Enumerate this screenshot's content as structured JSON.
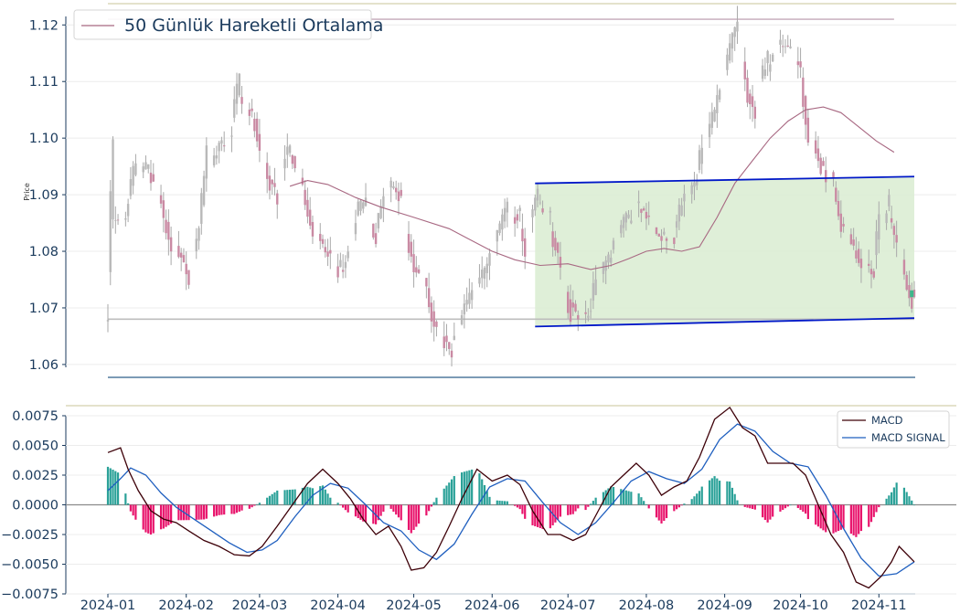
{
  "chart_data": [
    {
      "type": "candlestick",
      "ylabel": "Price",
      "ylim": [
        1.0595,
        1.1215
      ],
      "yticks": [
        "1.06",
        "1.07",
        "1.08",
        "1.09",
        "1.10",
        "1.11",
        "1.12"
      ],
      "ytick_values": [
        1.06,
        1.07,
        1.08,
        1.09,
        1.1,
        1.11,
        1.12
      ],
      "x_range": [
        "2024-01-01",
        "2024-11-15"
      ],
      "legend": {
        "label": "50 Günlük Hareketli Ortalama",
        "placement": "top-left"
      },
      "colors": {
        "moving_average": "#a86882",
        "channel": "#0018c8",
        "channel_fill": "#dcedd4",
        "wick": "#a9a9a9",
        "up_candle": "#3cb88a",
        "support_line": "#bdbdbd",
        "resistance_line": "#c4a8b8"
      },
      "horizontal_lines": {
        "support": 1.068,
        "resistance": 1.121
      },
      "support_line_range": [
        "2024-01-01",
        "2024-11-15"
      ],
      "resistance_line_range": [
        "2024-01-01",
        "2024-11-07"
      ],
      "channel": {
        "start": "2024-06-18",
        "end": "2024-11-15",
        "upper": [
          1.092,
          1.0932
        ],
        "lower": [
          1.0667,
          1.0682
        ]
      },
      "price_anchors": [
        [
          "2024-01-01",
          1.068
        ],
        [
          "2024-01-03",
          1.086
        ],
        [
          "2024-01-08",
          1.085
        ],
        [
          "2024-01-12",
          1.093
        ],
        [
          "2024-01-17",
          1.095
        ],
        [
          "2024-01-22",
          1.09
        ],
        [
          "2024-01-26",
          1.083
        ],
        [
          "2024-01-31",
          1.079
        ],
        [
          "2024-02-02",
          1.076
        ],
        [
          "2024-02-06",
          1.081
        ],
        [
          "2024-02-09",
          1.092
        ],
        [
          "2024-02-14",
          1.098
        ],
        [
          "2024-02-19",
          1.101
        ],
        [
          "2024-02-22",
          1.108
        ],
        [
          "2024-02-28",
          1.104
        ],
        [
          "2024-03-05",
          1.093
        ],
        [
          "2024-03-08",
          1.091
        ],
        [
          "2024-03-13",
          1.098
        ],
        [
          "2024-03-18",
          1.093
        ],
        [
          "2024-03-22",
          1.085
        ],
        [
          "2024-03-27",
          1.081
        ],
        [
          "2024-04-01",
          1.077
        ],
        [
          "2024-04-05",
          1.078
        ],
        [
          "2024-04-09",
          1.086
        ],
        [
          "2024-04-12",
          1.089
        ],
        [
          "2024-04-16",
          1.083
        ],
        [
          "2024-04-22",
          1.092
        ],
        [
          "2024-04-26",
          1.09
        ],
        [
          "2024-05-01",
          1.079
        ],
        [
          "2024-05-06",
          1.075
        ],
        [
          "2024-05-09",
          1.069
        ],
        [
          "2024-05-13",
          1.065
        ],
        [
          "2024-05-16",
          1.063
        ],
        [
          "2024-05-20",
          1.068
        ],
        [
          "2024-05-24",
          1.072
        ],
        [
          "2024-05-29",
          1.076
        ],
        [
          "2024-06-03",
          1.081
        ],
        [
          "2024-06-07",
          1.087
        ],
        [
          "2024-06-12",
          1.086
        ],
        [
          "2024-06-14",
          1.082
        ],
        [
          "2024-06-19",
          1.088
        ],
        [
          "2024-06-24",
          1.086
        ],
        [
          "2024-06-28",
          1.08
        ],
        [
          "2024-07-02",
          1.071
        ],
        [
          "2024-07-05",
          1.069
        ],
        [
          "2024-07-10",
          1.069
        ],
        [
          "2024-07-15",
          1.076
        ],
        [
          "2024-07-19",
          1.08
        ],
        [
          "2024-07-24",
          1.085
        ],
        [
          "2024-07-29",
          1.088
        ],
        [
          "2024-08-02",
          1.086
        ],
        [
          "2024-08-07",
          1.083
        ],
        [
          "2024-08-12",
          1.083
        ],
        [
          "2024-08-16",
          1.088
        ],
        [
          "2024-08-21",
          1.092
        ],
        [
          "2024-08-26",
          1.1
        ],
        [
          "2024-08-30",
          1.107
        ],
        [
          "2024-09-04",
          1.116
        ],
        [
          "2024-09-06",
          1.119
        ],
        [
          "2024-09-10",
          1.11
        ],
        [
          "2024-09-13",
          1.106
        ],
        [
          "2024-09-18",
          1.112
        ],
        [
          "2024-09-23",
          1.116
        ],
        [
          "2024-09-27",
          1.116
        ],
        [
          "2024-10-01",
          1.114
        ],
        [
          "2024-10-04",
          1.104
        ],
        [
          "2024-10-09",
          1.096
        ],
        [
          "2024-10-14",
          1.093
        ],
        [
          "2024-10-17",
          1.087
        ],
        [
          "2024-10-22",
          1.082
        ],
        [
          "2024-10-25",
          1.079
        ],
        [
          "2024-10-30",
          1.076
        ],
        [
          "2024-11-01",
          1.082
        ],
        [
          "2024-11-05",
          1.087
        ],
        [
          "2024-11-08",
          1.084
        ],
        [
          "2024-11-12",
          1.076
        ],
        [
          "2024-11-15",
          1.072
        ]
      ],
      "moving_average": [
        [
          "2024-03-13",
          1.0915
        ],
        [
          "2024-03-20",
          1.0925
        ],
        [
          "2024-03-28",
          1.0918
        ],
        [
          "2024-04-08",
          1.0895
        ],
        [
          "2024-04-18",
          1.0878
        ],
        [
          "2024-05-01",
          1.086
        ],
        [
          "2024-05-15",
          1.084
        ],
        [
          "2024-06-01",
          1.08
        ],
        [
          "2024-06-10",
          1.0785
        ],
        [
          "2024-06-20",
          1.0775
        ],
        [
          "2024-07-01",
          1.0778
        ],
        [
          "2024-07-10",
          1.0768
        ],
        [
          "2024-07-18",
          1.0775
        ],
        [
          "2024-07-25",
          1.0787
        ],
        [
          "2024-08-01",
          1.08
        ],
        [
          "2024-08-08",
          1.0805
        ],
        [
          "2024-08-15",
          1.08
        ],
        [
          "2024-08-22",
          1.0808
        ],
        [
          "2024-08-29",
          1.086
        ],
        [
          "2024-09-05",
          1.092
        ],
        [
          "2024-09-12",
          1.096
        ],
        [
          "2024-09-19",
          1.1
        ],
        [
          "2024-09-26",
          1.103
        ],
        [
          "2024-10-03",
          1.105
        ],
        [
          "2024-10-10",
          1.1055
        ],
        [
          "2024-10-17",
          1.1045
        ],
        [
          "2024-10-24",
          1.102
        ],
        [
          "2024-10-31",
          1.0995
        ],
        [
          "2024-11-07",
          1.0975
        ]
      ]
    },
    {
      "type": "macd",
      "ylim": [
        -0.0075,
        0.0075
      ],
      "yticks": [
        "−0.0075",
        "−0.0050",
        "−0.0025",
        "0.0000",
        "0.0025",
        "0.0050",
        "0.0075"
      ],
      "ytick_values": [
        -0.0075,
        -0.005,
        -0.0025,
        0,
        0.0025,
        0.005,
        0.0075
      ],
      "xticks": [
        "2024-01",
        "2024-02",
        "2024-03",
        "2024-04",
        "2024-05",
        "2024-06",
        "2024-07",
        "2024-08",
        "2024-09",
        "2024-10",
        "2024-11"
      ],
      "xtick_values": [
        "2024-01-01",
        "2024-02-01",
        "2024-03-01",
        "2024-04-01",
        "2024-05-01",
        "2024-06-01",
        "2024-07-01",
        "2024-08-01",
        "2024-09-01",
        "2024-10-01",
        "2024-11-01"
      ],
      "legend": {
        "entries": [
          "MACD",
          "MACD SIGNAL"
        ],
        "placement": "top-right"
      },
      "colors": {
        "macd": "#3d0008",
        "signal": "#1f5fbf",
        "hist_pos": "#2aa198",
        "hist_neg": "#e8146c",
        "zero_line": "#8a8a8a"
      },
      "macd": [
        [
          "2024-01-01",
          0.0044
        ],
        [
          "2024-01-06",
          0.0048
        ],
        [
          "2024-01-09",
          0.003
        ],
        [
          "2024-01-13",
          0.0012
        ],
        [
          "2024-01-18",
          -0.0005
        ],
        [
          "2024-01-23",
          -0.0012
        ],
        [
          "2024-01-28",
          -0.0015
        ],
        [
          "2024-02-02",
          -0.0022
        ],
        [
          "2024-02-08",
          -0.003
        ],
        [
          "2024-02-14",
          -0.0035
        ],
        [
          "2024-02-20",
          -0.0042
        ],
        [
          "2024-02-26",
          -0.0043
        ],
        [
          "2024-03-02",
          -0.0035
        ],
        [
          "2024-03-08",
          -0.0018
        ],
        [
          "2024-03-14",
          0.0
        ],
        [
          "2024-03-20",
          0.0018
        ],
        [
          "2024-03-26",
          0.003
        ],
        [
          "2024-04-01",
          0.0018
        ],
        [
          "2024-04-06",
          0.0005
        ],
        [
          "2024-04-11",
          -0.0012
        ],
        [
          "2024-04-16",
          -0.0025
        ],
        [
          "2024-04-21",
          -0.0018
        ],
        [
          "2024-04-26",
          -0.0035
        ],
        [
          "2024-04-30",
          -0.0055
        ],
        [
          "2024-05-05",
          -0.0053
        ],
        [
          "2024-05-10",
          -0.004
        ],
        [
          "2024-05-15",
          -0.0018
        ],
        [
          "2024-05-20",
          0.0005
        ],
        [
          "2024-05-26",
          0.003
        ],
        [
          "2024-06-01",
          0.002
        ],
        [
          "2024-06-07",
          0.0025
        ],
        [
          "2024-06-12",
          0.0017
        ],
        [
          "2024-06-17",
          -0.0005
        ],
        [
          "2024-06-23",
          -0.0025
        ],
        [
          "2024-06-28",
          -0.0025
        ],
        [
          "2024-07-03",
          -0.003
        ],
        [
          "2024-07-08",
          -0.0025
        ],
        [
          "2024-07-13",
          -0.0005
        ],
        [
          "2024-07-18",
          0.0015
        ],
        [
          "2024-07-23",
          0.0025
        ],
        [
          "2024-07-28",
          0.0035
        ],
        [
          "2024-08-02",
          0.0025
        ],
        [
          "2024-08-07",
          0.0008
        ],
        [
          "2024-08-12",
          0.0015
        ],
        [
          "2024-08-17",
          0.002
        ],
        [
          "2024-08-22",
          0.004
        ],
        [
          "2024-08-28",
          0.0072
        ],
        [
          "2024-09-03",
          0.0082
        ],
        [
          "2024-09-08",
          0.0065
        ],
        [
          "2024-09-13",
          0.0058
        ],
        [
          "2024-09-18",
          0.0035
        ],
        [
          "2024-09-23",
          0.0035
        ],
        [
          "2024-09-28",
          0.0035
        ],
        [
          "2024-10-03",
          0.0025
        ],
        [
          "2024-10-08",
          0.0
        ],
        [
          "2024-10-13",
          -0.0025
        ],
        [
          "2024-10-18",
          -0.004
        ],
        [
          "2024-10-23",
          -0.0065
        ],
        [
          "2024-10-28",
          -0.007
        ],
        [
          "2024-11-02",
          -0.006
        ],
        [
          "2024-11-06",
          -0.0048
        ],
        [
          "2024-11-09",
          -0.0035
        ],
        [
          "2024-11-15",
          -0.0048
        ]
      ],
      "signal": [
        [
          "2024-01-01",
          0.0012
        ],
        [
          "2024-01-06",
          0.0022
        ],
        [
          "2024-01-10",
          0.0031
        ],
        [
          "2024-01-16",
          0.0025
        ],
        [
          "2024-01-22",
          0.001
        ],
        [
          "2024-01-28",
          -0.0002
        ],
        [
          "2024-02-04",
          -0.0012
        ],
        [
          "2024-02-11",
          -0.0022
        ],
        [
          "2024-02-18",
          -0.0032
        ],
        [
          "2024-02-25",
          -0.004
        ],
        [
          "2024-03-02",
          -0.0038
        ],
        [
          "2024-03-08",
          -0.003
        ],
        [
          "2024-03-15",
          -0.001
        ],
        [
          "2024-03-22",
          0.0008
        ],
        [
          "2024-03-29",
          0.0018
        ],
        [
          "2024-04-05",
          0.0014
        ],
        [
          "2024-04-12",
          0.0
        ],
        [
          "2024-04-19",
          -0.0015
        ],
        [
          "2024-04-26",
          -0.0022
        ],
        [
          "2024-05-03",
          -0.0038
        ],
        [
          "2024-05-10",
          -0.0046
        ],
        [
          "2024-05-17",
          -0.0033
        ],
        [
          "2024-05-24",
          -0.0008
        ],
        [
          "2024-05-31",
          0.0015
        ],
        [
          "2024-06-07",
          0.0022
        ],
        [
          "2024-06-14",
          0.002
        ],
        [
          "2024-06-21",
          0.0002
        ],
        [
          "2024-06-28",
          -0.0015
        ],
        [
          "2024-07-05",
          -0.0025
        ],
        [
          "2024-07-12",
          -0.0015
        ],
        [
          "2024-07-19",
          0.0002
        ],
        [
          "2024-07-26",
          0.002
        ],
        [
          "2024-08-02",
          0.0028
        ],
        [
          "2024-08-09",
          0.0022
        ],
        [
          "2024-08-16",
          0.0018
        ],
        [
          "2024-08-23",
          0.003
        ],
        [
          "2024-08-30",
          0.0055
        ],
        [
          "2024-09-06",
          0.0068
        ],
        [
          "2024-09-13",
          0.0062
        ],
        [
          "2024-09-20",
          0.0045
        ],
        [
          "2024-09-27",
          0.0035
        ],
        [
          "2024-10-04",
          0.0032
        ],
        [
          "2024-10-11",
          0.0008
        ],
        [
          "2024-10-18",
          -0.002
        ],
        [
          "2024-10-25",
          -0.0045
        ],
        [
          "2024-11-01",
          -0.006
        ],
        [
          "2024-11-08",
          -0.0058
        ],
        [
          "2024-11-15",
          -0.0048
        ]
      ]
    }
  ]
}
